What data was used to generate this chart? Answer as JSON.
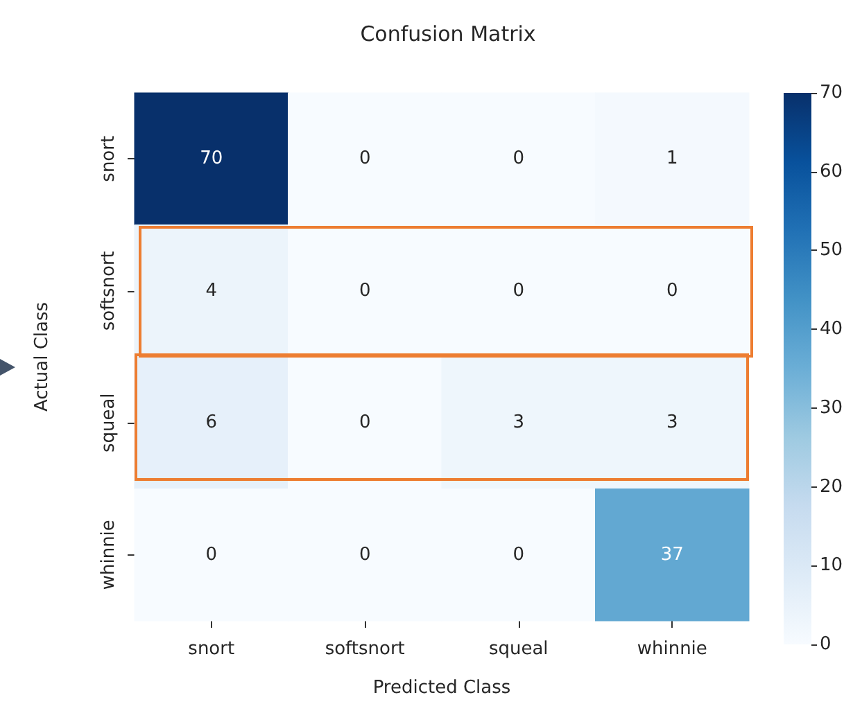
{
  "chart_data": {
    "type": "heatmap",
    "title": "Confusion Matrix",
    "xlabel": "Predicted Class",
    "ylabel": "Actual Class",
    "categories": [
      "snort",
      "softsnort",
      "squeal",
      "whinnie"
    ],
    "y_categories": [
      "snort",
      "softsnort",
      "squeal",
      "whinnie"
    ],
    "cells": [
      [
        70,
        0,
        0,
        1
      ],
      [
        4,
        0,
        0,
        0
      ],
      [
        6,
        0,
        3,
        3
      ],
      [
        0,
        0,
        0,
        37
      ]
    ],
    "clim": [
      0,
      70
    ],
    "cticks": [
      0,
      10,
      20,
      30,
      40,
      50,
      60,
      70
    ],
    "data_labels": true
  }
}
